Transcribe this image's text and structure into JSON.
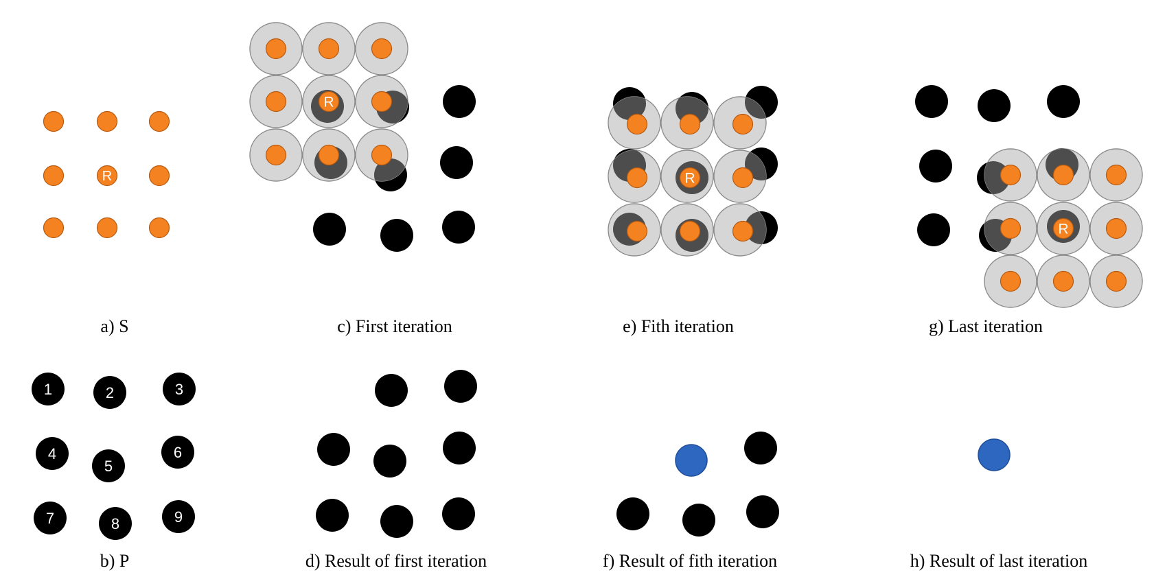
{
  "colors": {
    "sample_point": "#F58220",
    "pattern_point": "#000000",
    "overlap_fill": "#4D4D4D",
    "search_area": "#D3D3D3",
    "result_point": "#2E67C0"
  },
  "panels": {
    "a": {
      "caption": "a) S",
      "center_label": "R"
    },
    "b": {
      "caption": "b) P",
      "point_labels": [
        "1",
        "2",
        "3",
        "4",
        "5",
        "6",
        "7",
        "8",
        "9"
      ]
    },
    "c": {
      "caption": "c)  First iteration",
      "center_label": "R"
    },
    "d": {
      "caption": "d)  Result of first iteration"
    },
    "e": {
      "caption": "e) Fith iteration",
      "center_label": "R"
    },
    "f": {
      "caption": "f)  Result of fith iteration"
    },
    "g": {
      "caption": "g)  Last iteration",
      "center_label": "R"
    },
    "h": {
      "caption": "h)  Result of last iteration"
    }
  }
}
